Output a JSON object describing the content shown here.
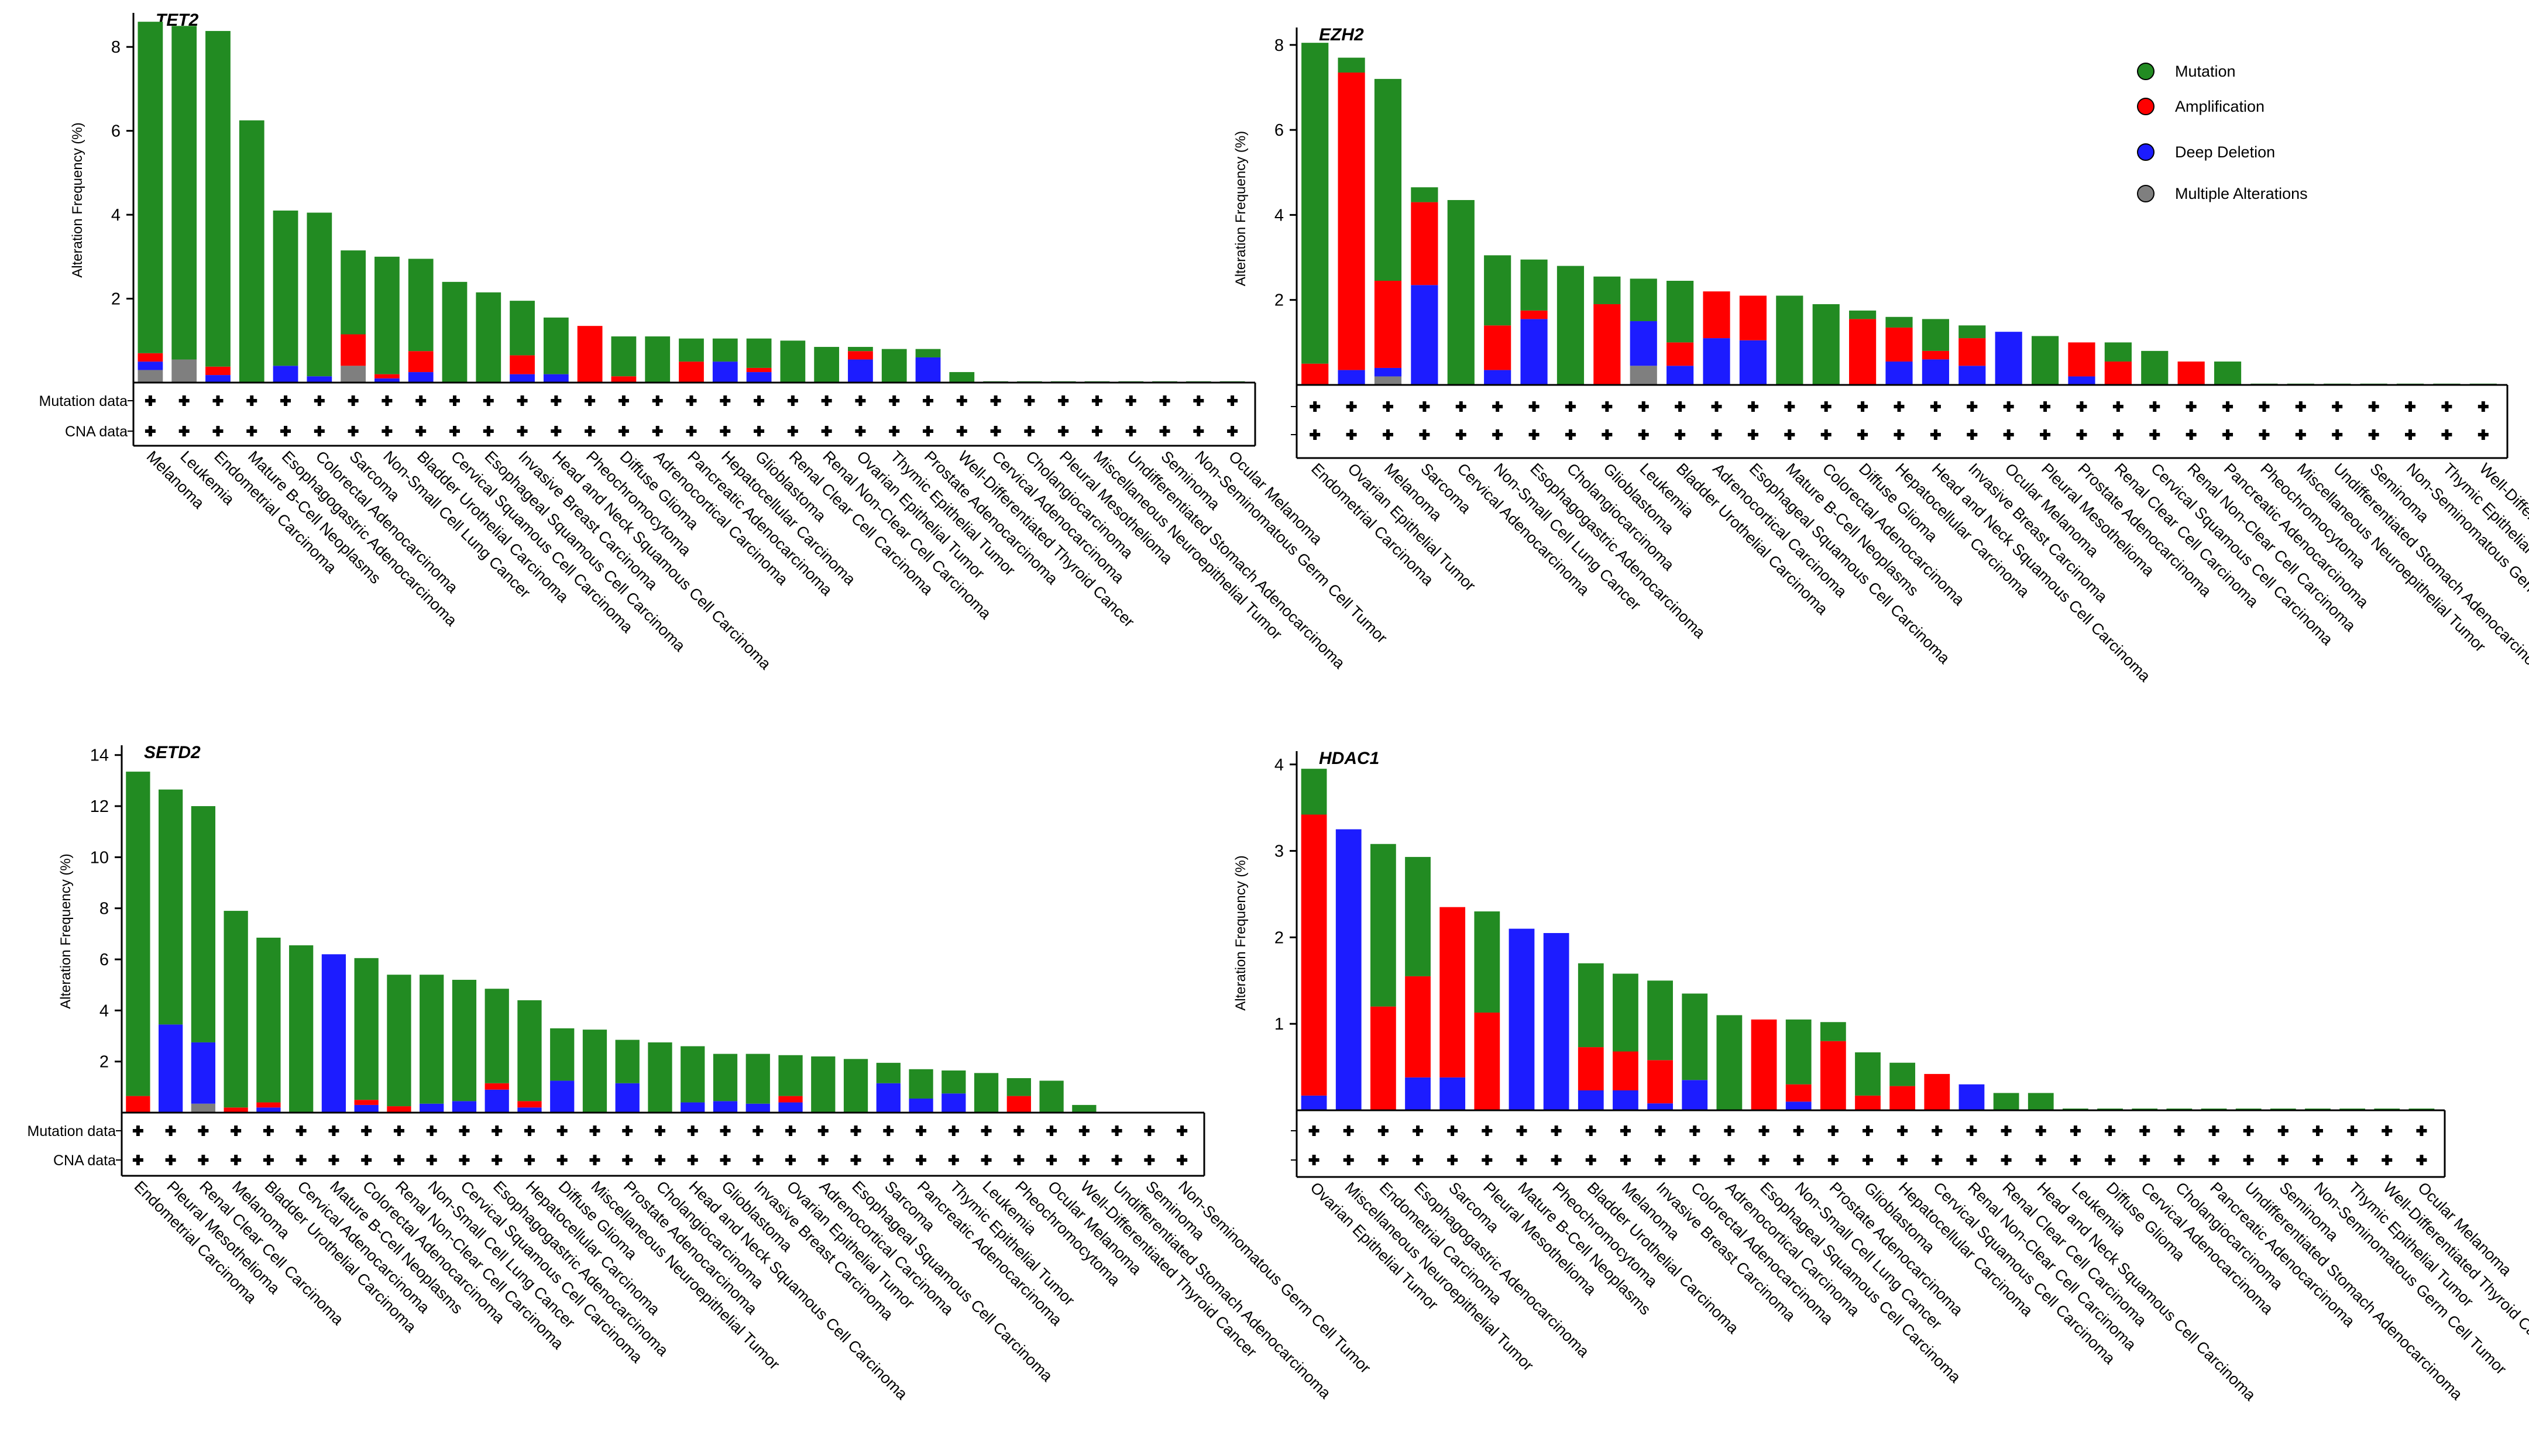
{
  "colors": {
    "mutation": "#228b22",
    "amplification": "#ff0000",
    "deep_deletion": "#1c1cff",
    "multiple": "#7f7f7f"
  },
  "legend": {
    "mutation": "Mutation",
    "amplification": "Amplification",
    "deep_deletion": "Deep Deletion",
    "multiple": "Multiple Alterations"
  },
  "chart_data": [
    {
      "type": "bar",
      "title": "TET2",
      "ylabel": "Alteration Frequency (%)",
      "ylim": [
        0,
        8.7
      ],
      "yticks": [
        2,
        4,
        6,
        8
      ],
      "row_labels": [
        "Mutation data",
        "CNA data"
      ],
      "categories": [
        "Melanoma",
        "Leukemia",
        "Endometrial Carcinoma",
        "Mature B-Cell Neoplasms",
        "Esophagogastric Adenocarcinoma",
        "Colorectal Adenocarcinoma",
        "Sarcoma",
        "Non-Small Cell Lung Cancer",
        "Bladder Urothelial Carcinoma",
        "Cervical Squamous Cell Carcinoma",
        "Esophageal Squamous Cell Carcinoma",
        "Invasive Breast Carcinoma",
        "Head and Neck Squamous Cell Carcinoma",
        "Pheochromocytoma",
        "Diffuse Glioma",
        "Adrenocortical Carcinoma",
        "Pancreatic Adenocarcinoma",
        "Hepatocellular Carcinoma",
        "Glioblastoma",
        "Renal Clear Cell Carcinoma",
        "Renal Non-Clear Cell Carcinoma",
        "Ovarian Epithelial Tumor",
        "Thymic Epithelial Tumor",
        "Prostate Adenocarcinoma",
        "Well-Differentiated Thyroid Cancer",
        "Cervical Adenocarcinoma",
        "Cholangiocarcinoma",
        "Pleural Mesothelioma",
        "Miscellaneous Neuroepithelial Tumor",
        "Undifferentiated Stomach Adenocarcinoma",
        "Seminoma",
        "Non-Seminomatous Germ Cell Tumor",
        "Ocular Melanoma"
      ],
      "series": [
        {
          "name": "Multiple Alterations",
          "values": [
            0.3,
            0.55,
            0,
            0,
            0,
            0,
            0.4,
            0,
            0,
            0,
            0,
            0,
            0,
            0,
            0,
            0,
            0,
            0,
            0,
            0,
            0,
            0,
            0,
            0,
            0,
            0,
            0,
            0,
            0,
            0,
            0,
            0,
            0
          ]
        },
        {
          "name": "Deep Deletion",
          "values": [
            0.2,
            0,
            0.18,
            0,
            0.4,
            0.15,
            0,
            0.1,
            0.25,
            0,
            0,
            0.2,
            0.2,
            0,
            0,
            0,
            0,
            0.5,
            0.25,
            0,
            0,
            0.55,
            0,
            0.6,
            0,
            0,
            0,
            0,
            0,
            0,
            0,
            0,
            0
          ]
        },
        {
          "name": "Amplification",
          "values": [
            0.2,
            0,
            0.2,
            0,
            0,
            0,
            0.75,
            0.1,
            0.5,
            0,
            0,
            0.45,
            0,
            1.35,
            0.15,
            0,
            0.5,
            0,
            0.1,
            0,
            0,
            0.2,
            0,
            0,
            0,
            0,
            0,
            0,
            0,
            0,
            0,
            0,
            0
          ]
        },
        {
          "name": "Mutation",
          "values": [
            7.9,
            7.95,
            8.0,
            6.25,
            3.7,
            3.9,
            2.0,
            2.8,
            2.2,
            2.4,
            2.15,
            1.3,
            1.35,
            0,
            0.95,
            1.1,
            0.55,
            0.55,
            0.7,
            1.0,
            0.85,
            0.1,
            0.8,
            0.2,
            0.25,
            0.03,
            0.03,
            0.03,
            0.03,
            0.03,
            0.03,
            0.03,
            0.03
          ]
        }
      ]
    },
    {
      "type": "bar",
      "title": "EZH2",
      "ylabel": "Alteration Frequency (%)",
      "ylim": [
        0,
        8.3
      ],
      "yticks": [
        2,
        4,
        6,
        8
      ],
      "row_labels": [
        "",
        ""
      ],
      "categories": [
        "Endometrial Carcinoma",
        "Ovarian Epithelial Tumor",
        "Melanoma",
        "Sarcoma",
        "Cervical Adenocarcinoma",
        "Non-Small Cell Lung Cancer",
        "Esophagogastric Adenocarcinoma",
        "Cholangiocarcinoma",
        "Glioblastoma",
        "Leukemia",
        "Bladder Urothelial Carcinoma",
        "Adrenocortical Carcinoma",
        "Esophageal Squamous Cell Carcinoma",
        "Mature B-Cell Neoplasms",
        "Colorectal Adenocarcinoma",
        "Diffuse Glioma",
        "Hepatocellular Carcinoma",
        "Head and Neck Squamous Cell Carcinoma",
        "Invasive Breast Carcinoma",
        "Ocular Melanoma",
        "Pleural Mesothelioma",
        "Prostate Adenocarcinoma",
        "Renal Clear Cell Carcinoma",
        "Cervical Squamous Cell Carcinoma",
        "Renal Non-Clear Cell Carcinoma",
        "Pancreatic Adenocarcinoma",
        "Pheochromocytoma",
        "Miscellaneous Neuroepithelial Tumor",
        "Undifferentiated Stomach Adenocarcinoma",
        "Seminoma",
        "Non-Seminomatous Germ Cell Tumor",
        "Thymic Epithelial Tumor",
        "Well-Differentiated Thyroid Cancer"
      ],
      "series": [
        {
          "name": "Multiple Alterations",
          "values": [
            0,
            0,
            0.2,
            0,
            0,
            0,
            0,
            0,
            0,
            0.45,
            0,
            0,
            0,
            0,
            0,
            0,
            0,
            0,
            0,
            0,
            0,
            0,
            0,
            0,
            0,
            0,
            0,
            0,
            0,
            0,
            0,
            0,
            0
          ]
        },
        {
          "name": "Deep Deletion",
          "values": [
            0,
            0.35,
            0.2,
            2.35,
            0,
            0.35,
            1.55,
            0,
            0,
            1.05,
            0.45,
            1.1,
            1.05,
            0,
            0,
            0,
            0.55,
            0.6,
            0.45,
            1.25,
            0,
            0.2,
            0,
            0,
            0,
            0,
            0,
            0,
            0,
            0,
            0,
            0,
            0
          ]
        },
        {
          "name": "Amplification",
          "values": [
            0.5,
            7.0,
            2.05,
            1.95,
            0,
            1.05,
            0.2,
            0,
            1.9,
            0,
            0.55,
            1.1,
            1.05,
            0,
            0,
            1.55,
            0.8,
            0.2,
            0.65,
            0,
            0,
            0.8,
            0.55,
            0,
            0.55,
            0,
            0,
            0,
            0,
            0,
            0,
            0,
            0
          ]
        },
        {
          "name": "Mutation",
          "values": [
            7.55,
            0.35,
            4.75,
            0.35,
            4.35,
            1.65,
            1.2,
            2.8,
            0.65,
            1.0,
            1.45,
            0,
            0,
            2.1,
            1.9,
            0.2,
            0.25,
            0.75,
            0.3,
            0,
            1.15,
            0,
            0.45,
            0.8,
            0,
            0.55,
            0.03,
            0.03,
            0.03,
            0.03,
            0.03,
            0.03,
            0.03
          ]
        }
      ]
    },
    {
      "type": "bar",
      "title": "SETD2",
      "ylabel": "Alteration Frequency (%)",
      "ylim": [
        0,
        14.2
      ],
      "yticks": [
        2,
        4,
        6,
        8,
        10,
        12,
        14
      ],
      "row_labels": [
        "Mutation data",
        "CNA data"
      ],
      "categories": [
        "Endometrial Carcinoma",
        "Pleural Mesothelioma",
        "Renal Clear Cell Carcinoma",
        "Melanoma",
        "Bladder Urothelial Carcinoma",
        "Cervical Adenocarcinoma",
        "Mature B-Cell Neoplasms",
        "Colorectal Adenocarcinoma",
        "Renal Non-Clear Cell Carcinoma",
        "Non-Small Cell Lung Cancer",
        "Cervical Squamous Cell Carcinoma",
        "Esophagogastric Adenocarcinoma",
        "Hepatocellular Carcinoma",
        "Diffuse Glioma",
        "Miscellaneous Neuroepithelial Tumor",
        "Prostate Adenocarcinoma",
        "Cholangiocarcinoma",
        "Head and Neck Squamous Cell Carcinoma",
        "Glioblastoma",
        "Invasive Breast Carcinoma",
        "Ovarian Epithelial Tumor",
        "Adrenocortical Carcinoma",
        "Esophageal Squamous Cell Carcinoma",
        "Sarcoma",
        "Pancreatic Adenocarcinoma",
        "Thymic Epithelial Tumor",
        "Leukemia",
        "Pheochromocytoma",
        "Ocular Melanoma",
        "Well-Differentiated Thyroid Cancer",
        "Undifferentiated Stomach Adenocarcinoma",
        "Seminoma",
        "Non-Seminomatous Germ Cell Tumor"
      ],
      "series": [
        {
          "name": "Multiple Alterations",
          "values": [
            0,
            0,
            0.35,
            0,
            0,
            0,
            0,
            0,
            0,
            0,
            0,
            0,
            0,
            0,
            0,
            0,
            0,
            0,
            0,
            0,
            0,
            0,
            0,
            0,
            0,
            0,
            0,
            0,
            0,
            0,
            0,
            0,
            0
          ]
        },
        {
          "name": "Deep Deletion",
          "values": [
            0,
            3.45,
            2.4,
            0,
            0.2,
            0,
            6.2,
            0.3,
            0,
            0.35,
            0.45,
            0.9,
            0.2,
            1.25,
            0,
            1.15,
            0,
            0.4,
            0.45,
            0.35,
            0.4,
            0,
            0,
            1.15,
            0.55,
            0.75,
            0,
            0,
            0,
            0,
            0,
            0,
            0
          ]
        },
        {
          "name": "Amplification",
          "values": [
            0.65,
            0,
            0,
            0.2,
            0.2,
            0,
            0,
            0.2,
            0.25,
            0,
            0,
            0.25,
            0.25,
            0,
            0,
            0,
            0,
            0,
            0,
            0,
            0.25,
            0,
            0,
            0,
            0,
            0,
            0,
            0.65,
            0,
            0,
            0,
            0,
            0
          ]
        },
        {
          "name": "Mutation",
          "values": [
            12.7,
            9.2,
            9.25,
            7.7,
            6.45,
            6.55,
            0,
            5.55,
            5.15,
            5.05,
            4.75,
            3.7,
            3.95,
            2.05,
            3.25,
            1.7,
            2.75,
            2.2,
            1.85,
            1.95,
            1.6,
            2.2,
            2.1,
            0.8,
            1.15,
            0.9,
            1.55,
            0.7,
            1.25,
            0.3,
            0.03,
            0.03,
            0.03
          ]
        }
      ]
    },
    {
      "type": "bar",
      "title": "HDAC1",
      "ylabel": "Alteration Frequency (%)",
      "ylim": [
        0,
        4.1
      ],
      "yticks": [
        1,
        2,
        3,
        4
      ],
      "row_labels": [
        "",
        ""
      ],
      "categories": [
        "Ovarian Epithelial Tumor",
        "Miscellaneous Neuroepithelial Tumor",
        "Endometrial Carcinoma",
        "Esophagogastric Adenocarcinoma",
        "Sarcoma",
        "Pleural Mesothelioma",
        "Mature B-Cell Neoplasms",
        "Pheochromocytoma",
        "Bladder Urothelial Carcinoma",
        "Melanoma",
        "Invasive Breast Carcinoma",
        "Colorectal Adenocarcinoma",
        "Adrenocortical Carcinoma",
        "Esophageal Squamous Cell Carcinoma",
        "Non-Small Cell Lung Cancer",
        "Prostate Adenocarcinoma",
        "Glioblastoma",
        "Hepatocellular Carcinoma",
        "Cervical Squamous Cell Carcinoma",
        "Renal Non-Clear Cell Carcinoma",
        "Renal Clear Cell Carcinoma",
        "Head and Neck Squamous Cell Carcinoma",
        "Leukemia",
        "Diffuse Glioma",
        "Cervical Adenocarcinoma",
        "Cholangiocarcinoma",
        "Pancreatic Adenocarcinoma",
        "Undifferentiated Stomach Adenocarcinoma",
        "Seminoma",
        "Non-Seminomatous Germ Cell Tumor",
        "Thymic Epithelial Tumor",
        "Well-Differentiated Thyroid Cancer",
        "Ocular Melanoma"
      ],
      "series": [
        {
          "name": "Multiple Alterations",
          "values": [
            0,
            0,
            0,
            0,
            0,
            0,
            0,
            0,
            0,
            0,
            0,
            0,
            0,
            0,
            0,
            0,
            0,
            0,
            0,
            0,
            0,
            0,
            0,
            0,
            0,
            0,
            0,
            0,
            0,
            0,
            0,
            0,
            0
          ]
        },
        {
          "name": "Deep Deletion",
          "values": [
            0.17,
            3.25,
            0,
            0.38,
            0.38,
            0,
            2.1,
            2.05,
            0.23,
            0.23,
            0.08,
            0.35,
            0,
            0,
            0.1,
            0,
            0,
            0,
            0,
            0.3,
            0,
            0,
            0,
            0,
            0,
            0,
            0,
            0,
            0,
            0,
            0,
            0,
            0
          ]
        },
        {
          "name": "Amplification",
          "values": [
            3.25,
            0,
            1.2,
            1.17,
            1.97,
            1.13,
            0,
            0,
            0.5,
            0.45,
            0.5,
            0,
            0,
            1.05,
            0.2,
            0.8,
            0.17,
            0.28,
            0.42,
            0,
            0,
            0,
            0,
            0,
            0,
            0,
            0,
            0,
            0,
            0,
            0,
            0,
            0
          ]
        },
        {
          "name": "Mutation",
          "values": [
            0.53,
            0,
            1.88,
            1.38,
            0,
            1.17,
            0,
            0,
            0.97,
            0.9,
            0.92,
            1.0,
            1.1,
            0,
            0.75,
            0.22,
            0.5,
            0.27,
            0,
            0,
            0.2,
            0.2,
            0.02,
            0.02,
            0.02,
            0.02,
            0.02,
            0.02,
            0.02,
            0.02,
            0.02,
            0.02,
            0.02
          ]
        }
      ]
    }
  ]
}
